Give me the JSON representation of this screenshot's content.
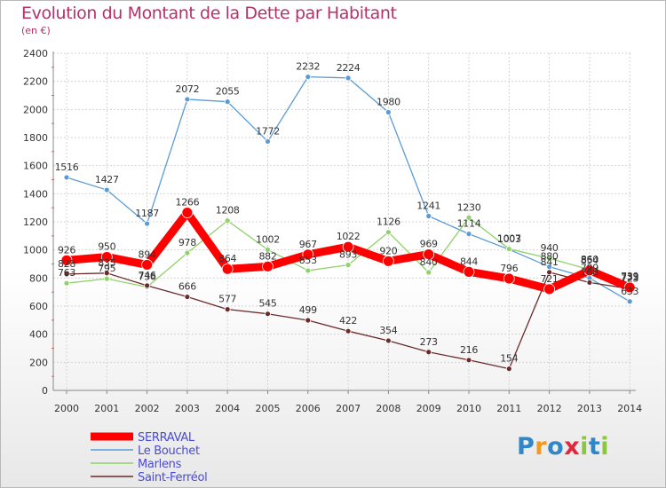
{
  "title": "Evolution du Montant de la Dette par Habitant",
  "subtitle": "(en €)",
  "brand": "Proxiti",
  "brand_colors": [
    "#2f86c8",
    "#f39a1e",
    "#2f86c8",
    "#e2263b",
    "#8cc63f",
    "#2f86c8",
    "#8cc63f"
  ],
  "chart_data": {
    "type": "line",
    "title": "Evolution du Montant de la Dette par Habitant",
    "subtitle": "(en €)",
    "xlabel": "",
    "ylabel": "",
    "x": [
      "2000",
      "2001",
      "2002",
      "2003",
      "2004",
      "2005",
      "2006",
      "2007",
      "2008",
      "2009",
      "2010",
      "2011",
      "2012",
      "2013",
      "2014"
    ],
    "ylim": [
      0,
      2400
    ],
    "yticks": [
      "0",
      "200",
      "400",
      "600",
      "800",
      "1000",
      "1200",
      "1400",
      "1600",
      "1800",
      "2000",
      "2200",
      "2400"
    ],
    "grid": true,
    "legend_position": "bottom-left",
    "series": [
      {
        "name": "Le Bouchet",
        "color": "#5b9bd5",
        "values": [
          1516,
          1427,
          1187,
          2072,
          2055,
          1772,
          2232,
          2224,
          1980,
          1241,
          1114,
          1003,
          880,
          799,
          633
        ],
        "labels": [
          "1516",
          "1427",
          "1187",
          "2072",
          "2055",
          "1772",
          "2232",
          "2224",
          "1980",
          "1241",
          "1114",
          "1003",
          "880",
          "799",
          "633"
        ]
      },
      {
        "name": "Marlens",
        "color": "#8fd16a",
        "values": [
          763,
          795,
          736,
          978,
          1208,
          1002,
          853,
          893,
          1126,
          840,
          1230,
          1007,
          940,
          860,
          739
        ],
        "labels": [
          "763",
          "795",
          "736",
          "978",
          "1208",
          "1002",
          "853",
          "893",
          "1126",
          "840",
          "1230",
          "1007",
          "940",
          "860",
          "739"
        ]
      },
      {
        "name": "Saint-Ferréol",
        "color": "#6b2b2b",
        "values": [
          828,
          835,
          746,
          666,
          577,
          545,
          499,
          422,
          354,
          273,
          216,
          154,
          841,
          768,
          723
        ],
        "labels": [
          "828",
          "835",
          "746",
          "666",
          "577",
          "545",
          "499",
          "422",
          "354",
          "273",
          "216",
          "154",
          "841",
          "768",
          "723"
        ]
      },
      {
        "name": "SERRAVAL",
        "color": "#ff0000",
        "values": [
          926,
          950,
          894,
          1266,
          864,
          882,
          967,
          1022,
          920,
          969,
          844,
          796,
          721,
          854,
          733
        ],
        "labels": [
          "926",
          "950",
          "894",
          "1266",
          "864",
          "882",
          "967",
          "1022",
          "920",
          "969",
          "844",
          "796",
          "721",
          "854",
          "733"
        ]
      }
    ],
    "legend": [
      "SERRAVAL",
      "Le Bouchet",
      "Marlens",
      "Saint-Ferréol"
    ]
  }
}
